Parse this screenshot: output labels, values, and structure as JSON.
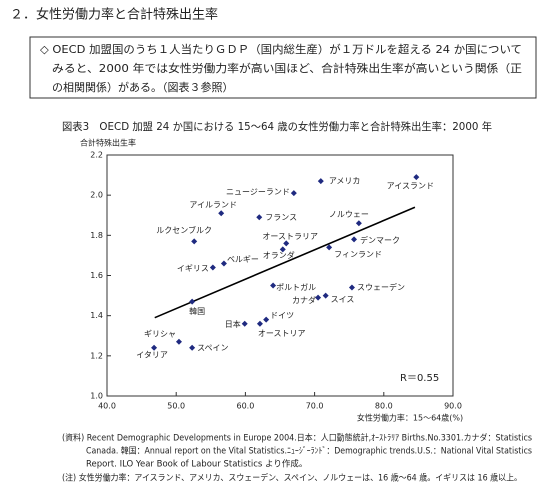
{
  "header": {
    "title": "２．女性労働力率と合計特殊出生率"
  },
  "box": {
    "lines": [
      "◇ OECD 加盟国のうち１人当たりＧＤＰ（国内総生産）が１万ドルを超える 24 か国について",
      "みると、2000 年では女性労働力率が高い国ほど、合計特殊出生率が高いという関係（正",
      "の相関関係）がある。（図表３参照）"
    ]
  },
  "chart_data": {
    "type": "scatter",
    "title": "図表3　OECD 加盟 24 か国における 15～64 歳の女性労働力率と合計特殊出生率：2000 年",
    "y_label": "合計特殊出生率",
    "x_label": "女性労働力率：15～64歳(%)",
    "annotation": "R＝0.55",
    "color": "#1f2a80",
    "categories": [
      "アメリカ",
      "アイスランド",
      "ニュージーランド",
      "アイルランド",
      "フランス",
      "ノルウェー",
      "ルクセンブルク",
      "デンマーク",
      "オーストラリア",
      "オランダ",
      "フィンランド",
      "イギリス",
      "ベルギー",
      "ポルトガル",
      "スウェーデン",
      "カナダ",
      "スイス",
      "韓国",
      "ドイツ",
      "日本",
      "オーストリア",
      "ギリシャ",
      "スペイン",
      "イタリア"
    ],
    "x": [
      70.9,
      84.7,
      67.0,
      56.5,
      62.0,
      76.4,
      52.6,
      75.7,
      65.9,
      65.4,
      72.1,
      55.3,
      56.9,
      64.0,
      75.4,
      70.5,
      71.6,
      52.3,
      63.0,
      59.9,
      62.1,
      50.4,
      52.3,
      46.8
    ],
    "values": [
      2.07,
      2.09,
      2.01,
      1.91,
      1.89,
      1.86,
      1.77,
      1.78,
      1.76,
      1.73,
      1.74,
      1.64,
      1.66,
      1.55,
      1.54,
      1.49,
      1.5,
      1.47,
      1.38,
      1.36,
      1.36,
      1.27,
      1.24,
      1.24
    ],
    "trend_line": {
      "x": [
        46.9,
        84.5
      ],
      "values": [
        1.39,
        1.94
      ]
    },
    "xlim": [
      40,
      90
    ],
    "xticks": [
      {
        "value": 40,
        "label": "40.0"
      },
      {
        "value": 50,
        "label": "50.0"
      },
      {
        "value": 60,
        "label": "60.0"
      },
      {
        "value": 70,
        "label": "70.0"
      },
      {
        "value": 80,
        "label": "80.0"
      },
      {
        "value": 90,
        "label": "90.0"
      }
    ],
    "ylim": [
      1.0,
      2.2
    ],
    "yticks": [
      {
        "value": 1.0,
        "label": "1.0"
      },
      1.2,
      1.4,
      1.6,
      1.8,
      {
        "value": 2.0,
        "label": "2.0"
      },
      2.2
    ]
  },
  "notes": {
    "lines": [
      "(資料) Recent Demographic Developments in Europe 2004.日本：人口動態統計,ｵｰｽﾄﾗﾘｱ Births.No.3301.カナダ：Statistics",
      "Canada. 韓国：Annual report on the Vital Statistics.ﾆｭｰｼﾞｰﾗﾝﾄﾞ：Demographic trends.U.S.：National Vital Statistics",
      "Report. ILO Year Book of Labour Statistics より作成。",
      "(注) 女性労働力率：アイスランド、アメリカ、スウェーデン、スペイン、ノルウェーは、16 歳～64 歳。イギリスは 16 歳以上。"
    ]
  }
}
